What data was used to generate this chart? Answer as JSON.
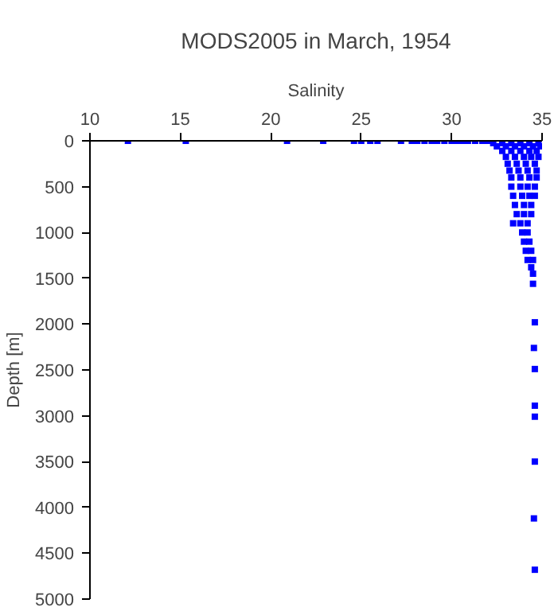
{
  "chart_data": {
    "type": "scatter",
    "title": "MODS2005 in March, 1954",
    "xlabel": "Salinity",
    "ylabel": "Depth [m]",
    "xlim": [
      10,
      35
    ],
    "xticks": [
      10,
      15,
      20,
      25,
      30,
      35
    ],
    "ylim": [
      5000,
      0
    ],
    "yticks": [
      0,
      500,
      1000,
      1500,
      2000,
      2500,
      3000,
      3500,
      4000,
      4500,
      5000
    ],
    "grid": false,
    "marker": "square",
    "series": [
      {
        "color": "#0000ff",
        "x": [
          12.1,
          15.3,
          20.9,
          22.9,
          24.6,
          25.0,
          25.5,
          25.9,
          27.2,
          27.8,
          28.1,
          28.5,
          28.9,
          29.2,
          29.6,
          30.0,
          30.3,
          30.6,
          30.9,
          31.3,
          31.7,
          32.0,
          32.3,
          32.8,
          33.3,
          33.8,
          34.3,
          34.8,
          32.5,
          33.0,
          33.5,
          34.0,
          34.5,
          34.9,
          32.8,
          33.3,
          33.8,
          34.3,
          34.7,
          33.0,
          33.5,
          34.0,
          34.4,
          34.8,
          33.1,
          33.6,
          34.1,
          34.6,
          33.2,
          33.7,
          34.2,
          34.7,
          33.3,
          33.8,
          34.3,
          34.7,
          33.3,
          33.8,
          34.2,
          34.6,
          33.4,
          33.9,
          34.3,
          34.6,
          33.5,
          34.0,
          34.4,
          33.6,
          34.0,
          34.4,
          33.4,
          33.8,
          34.2,
          33.9,
          34.2,
          34.0,
          34.3,
          34.1,
          34.4,
          34.2,
          34.5,
          34.4,
          34.5,
          34.5,
          34.6,
          34.55,
          34.6,
          34.6,
          34.6,
          34.6,
          34.55,
          34.6
        ],
        "values": [
          0,
          0,
          0,
          0,
          0,
          0,
          0,
          0,
          0,
          0,
          0,
          0,
          0,
          0,
          0,
          0,
          0,
          0,
          0,
          0,
          0,
          0,
          25,
          25,
          25,
          25,
          25,
          25,
          60,
          60,
          60,
          60,
          60,
          60,
          110,
          110,
          110,
          110,
          110,
          175,
          175,
          175,
          175,
          175,
          250,
          250,
          250,
          250,
          325,
          325,
          325,
          325,
          400,
          400,
          400,
          400,
          500,
          500,
          500,
          500,
          600,
          600,
          600,
          600,
          700,
          700,
          700,
          800,
          800,
          800,
          900,
          900,
          900,
          1000,
          1000,
          1100,
          1100,
          1200,
          1200,
          1300,
          1300,
          1380,
          1450,
          1560,
          1980,
          2260,
          2490,
          2890,
          3010,
          3500,
          4120,
          4680
        ]
      }
    ]
  }
}
